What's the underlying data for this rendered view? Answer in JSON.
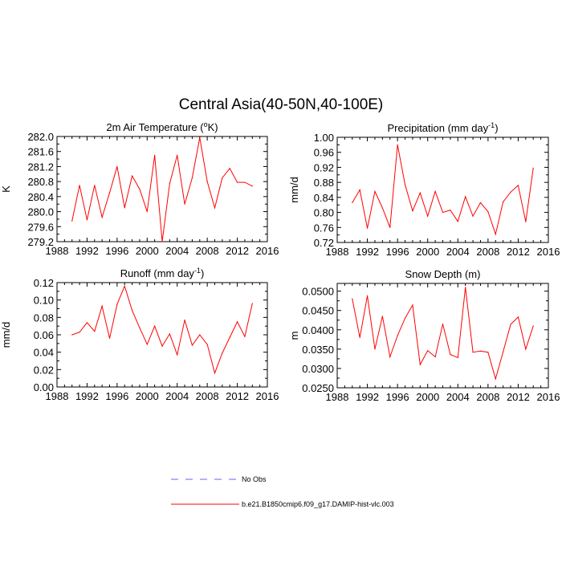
{
  "title": "Central Asia(40-50N,40-100E)",
  "colors": {
    "model": "#ff0000",
    "obs": "#6666ff",
    "axis": "#000000"
  },
  "legend": [
    {
      "label": "No Obs",
      "style": "dashed",
      "color": "#6666ff"
    },
    {
      "label": "b.e21.B1850cmip6.f09_g17.DAMIP-hist-vlc.003",
      "style": "solid",
      "color": "#ff0000"
    }
  ],
  "chart_data": [
    {
      "type": "line",
      "title_main": "2m Air Temperature (",
      "title_sup": "o",
      "title_end": "K)",
      "ylabel": "K",
      "xlim": [
        1988,
        2016
      ],
      "ylim": [
        279.2,
        282.0
      ],
      "xticks": [
        1988,
        1992,
        1996,
        2000,
        2004,
        2008,
        2012,
        2016
      ],
      "yticks": [
        279.2,
        279.6,
        280.0,
        280.4,
        280.8,
        281.2,
        281.6,
        282.0
      ],
      "ytick_labels": [
        "279.2",
        "279.6",
        "280.0",
        "280.4",
        "280.8",
        "281.2",
        "281.6",
        "282.0"
      ],
      "x": [
        1990,
        1991,
        1992,
        1993,
        1994,
        1995,
        1996,
        1997,
        1998,
        1999,
        2000,
        2001,
        2002,
        2003,
        2004,
        2005,
        2006,
        2007,
        2008,
        2009,
        2010,
        2011,
        2012,
        2013,
        2014
      ],
      "series": [
        {
          "name": "b.e21.B1850cmip6.f09_g17.DAMIP-hist-vlc.003",
          "values": [
            279.75,
            280.7,
            279.78,
            280.7,
            279.85,
            280.5,
            281.2,
            280.1,
            280.95,
            280.6,
            280.0,
            281.5,
            279.2,
            280.75,
            281.5,
            280.2,
            280.9,
            281.97,
            280.8,
            280.1,
            280.9,
            281.15,
            280.78,
            280.78,
            280.68
          ]
        }
      ]
    },
    {
      "type": "line",
      "title_main": "Precipitation (mm day",
      "title_sup": "-1",
      "title_end": ")",
      "ylabel": "mm/d",
      "xlim": [
        1988,
        2016
      ],
      "ylim": [
        0.72,
        1.0
      ],
      "xticks": [
        1988,
        1992,
        1996,
        2000,
        2004,
        2008,
        2012,
        2016
      ],
      "yticks": [
        0.72,
        0.76,
        0.8,
        0.84,
        0.88,
        0.92,
        0.96,
        1.0
      ],
      "ytick_labels": [
        "0.72",
        "0.76",
        "0.80",
        "0.84",
        "0.88",
        "0.92",
        "0.96",
        "1.00"
      ],
      "x": [
        1990,
        1991,
        1992,
        1993,
        1994,
        1995,
        1996,
        1997,
        1998,
        1999,
        2000,
        2001,
        2002,
        2003,
        2004,
        2005,
        2006,
        2007,
        2008,
        2009,
        2010,
        2011,
        2012,
        2013,
        2014
      ],
      "series": [
        {
          "name": "b.e21.B1850cmip6.f09_g17.DAMIP-hist-vlc.003",
          "values": [
            0.826,
            0.86,
            0.758,
            0.856,
            0.812,
            0.76,
            0.98,
            0.874,
            0.804,
            0.852,
            0.79,
            0.856,
            0.8,
            0.806,
            0.776,
            0.842,
            0.79,
            0.826,
            0.802,
            0.742,
            0.828,
            0.854,
            0.872,
            0.775,
            0.918
          ]
        }
      ]
    },
    {
      "type": "line",
      "title_main": "Runoff (mm day",
      "title_sup": "-1",
      "title_end": ")",
      "ylabel": "mm/d",
      "xlim": [
        1988,
        2016
      ],
      "ylim": [
        0.0,
        0.12
      ],
      "xticks": [
        1988,
        1992,
        1996,
        2000,
        2004,
        2008,
        2012,
        2016
      ],
      "yticks": [
        0.0,
        0.02,
        0.04,
        0.06,
        0.08,
        0.1,
        0.12
      ],
      "ytick_labels": [
        "0.00",
        "0.02",
        "0.04",
        "0.06",
        "0.08",
        "0.10",
        "0.12"
      ],
      "x": [
        1990,
        1991,
        1992,
        1993,
        1994,
        1995,
        1996,
        1997,
        1998,
        1999,
        2000,
        2001,
        2002,
        2003,
        2004,
        2005,
        2006,
        2007,
        2008,
        2009,
        2010,
        2011,
        2012,
        2013,
        2014
      ],
      "series": [
        {
          "name": "b.e21.B1850cmip6.f09_g17.DAMIP-hist-vlc.003",
          "values": [
            0.06,
            0.063,
            0.074,
            0.064,
            0.093,
            0.056,
            0.095,
            0.116,
            0.088,
            0.068,
            0.049,
            0.07,
            0.047,
            0.061,
            0.037,
            0.077,
            0.048,
            0.06,
            0.049,
            0.016,
            0.039,
            0.057,
            0.075,
            0.058,
            0.096
          ]
        }
      ]
    },
    {
      "type": "line",
      "title_main": "Snow Depth (m)",
      "title_sup": "",
      "title_end": "",
      "ylabel": "m",
      "xlim": [
        1988,
        2016
      ],
      "ylim": [
        0.025,
        0.052
      ],
      "xticks": [
        1988,
        1992,
        1996,
        2000,
        2004,
        2008,
        2012,
        2016
      ],
      "yticks": [
        0.025,
        0.03,
        0.035,
        0.04,
        0.045,
        0.05
      ],
      "ytick_labels": [
        "0.0250",
        "0.0300",
        "0.0350",
        "0.0400",
        "0.0450",
        "0.0500"
      ],
      "x": [
        1990,
        1991,
        1992,
        1993,
        1994,
        1995,
        1996,
        1997,
        1998,
        1999,
        2000,
        2001,
        2002,
        2003,
        2004,
        2005,
        2006,
        2007,
        2008,
        2009,
        2010,
        2011,
        2012,
        2013,
        2014
      ],
      "series": [
        {
          "name": "b.e21.B1850cmip6.f09_g17.DAMIP-hist-vlc.003",
          "values": [
            0.048,
            0.038,
            0.0488,
            0.035,
            0.0435,
            0.033,
            0.0385,
            0.043,
            0.0464,
            0.031,
            0.0346,
            0.033,
            0.0415,
            0.0336,
            0.0328,
            0.051,
            0.0342,
            0.0345,
            0.0342,
            0.0273,
            0.0343,
            0.0414,
            0.0433,
            0.035,
            0.041
          ]
        }
      ]
    }
  ]
}
